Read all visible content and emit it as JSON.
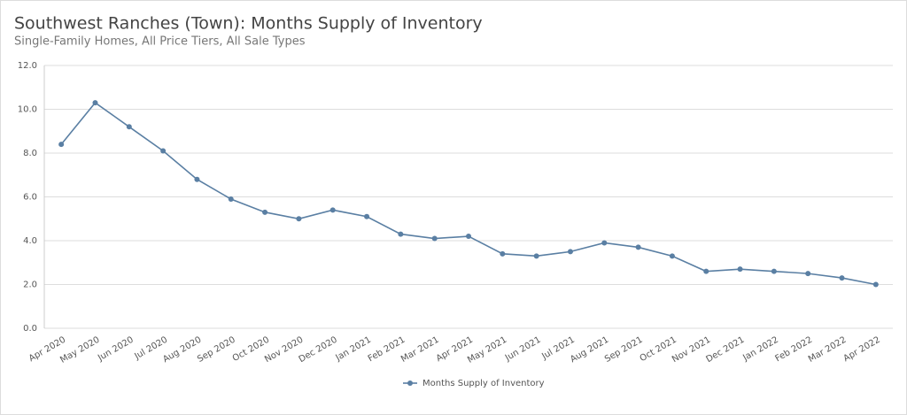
{
  "chart_data": {
    "type": "line",
    "title": "Southwest Ranches (Town): Months Supply of Inventory",
    "subtitle": "Single-Family Homes, All Price Tiers, All Sale Types",
    "categories": [
      "Apr 2020",
      "May 2020",
      "Jun 2020",
      "Jul 2020",
      "Aug 2020",
      "Sep 2020",
      "Oct 2020",
      "Nov 2020",
      "Dec 2020",
      "Jan 2021",
      "Feb 2021",
      "Mar 2021",
      "Apr 2021",
      "May 2021",
      "Jun 2021",
      "Jul 2021",
      "Aug 2021",
      "Sep 2021",
      "Oct 2021",
      "Nov 2021",
      "Dec 2021",
      "Jan 2022",
      "Feb 2022",
      "Mar 2022",
      "Apr 2022"
    ],
    "series": [
      {
        "name": "Months Supply of Inventory",
        "color": "#5a7fa3",
        "values": [
          8.4,
          10.3,
          9.2,
          8.1,
          6.8,
          5.9,
          5.3,
          5.0,
          5.4,
          5.1,
          4.3,
          4.1,
          4.2,
          3.4,
          3.3,
          3.5,
          3.9,
          3.7,
          3.3,
          2.6,
          2.7,
          2.6,
          2.5,
          2.3,
          2.0
        ]
      }
    ],
    "ylim": [
      0,
      12
    ],
    "yticks": [
      {
        "value": 0,
        "label": "0.0"
      },
      {
        "value": 2,
        "label": "2.0"
      },
      {
        "value": 4,
        "label": "4.0"
      },
      {
        "value": 6,
        "label": "6.0"
      },
      {
        "value": 8,
        "label": "8.0"
      },
      {
        "value": 10,
        "label": "10.0"
      },
      {
        "value": 12,
        "label": "12.0"
      }
    ],
    "grid": true,
    "legend": "bottom"
  }
}
